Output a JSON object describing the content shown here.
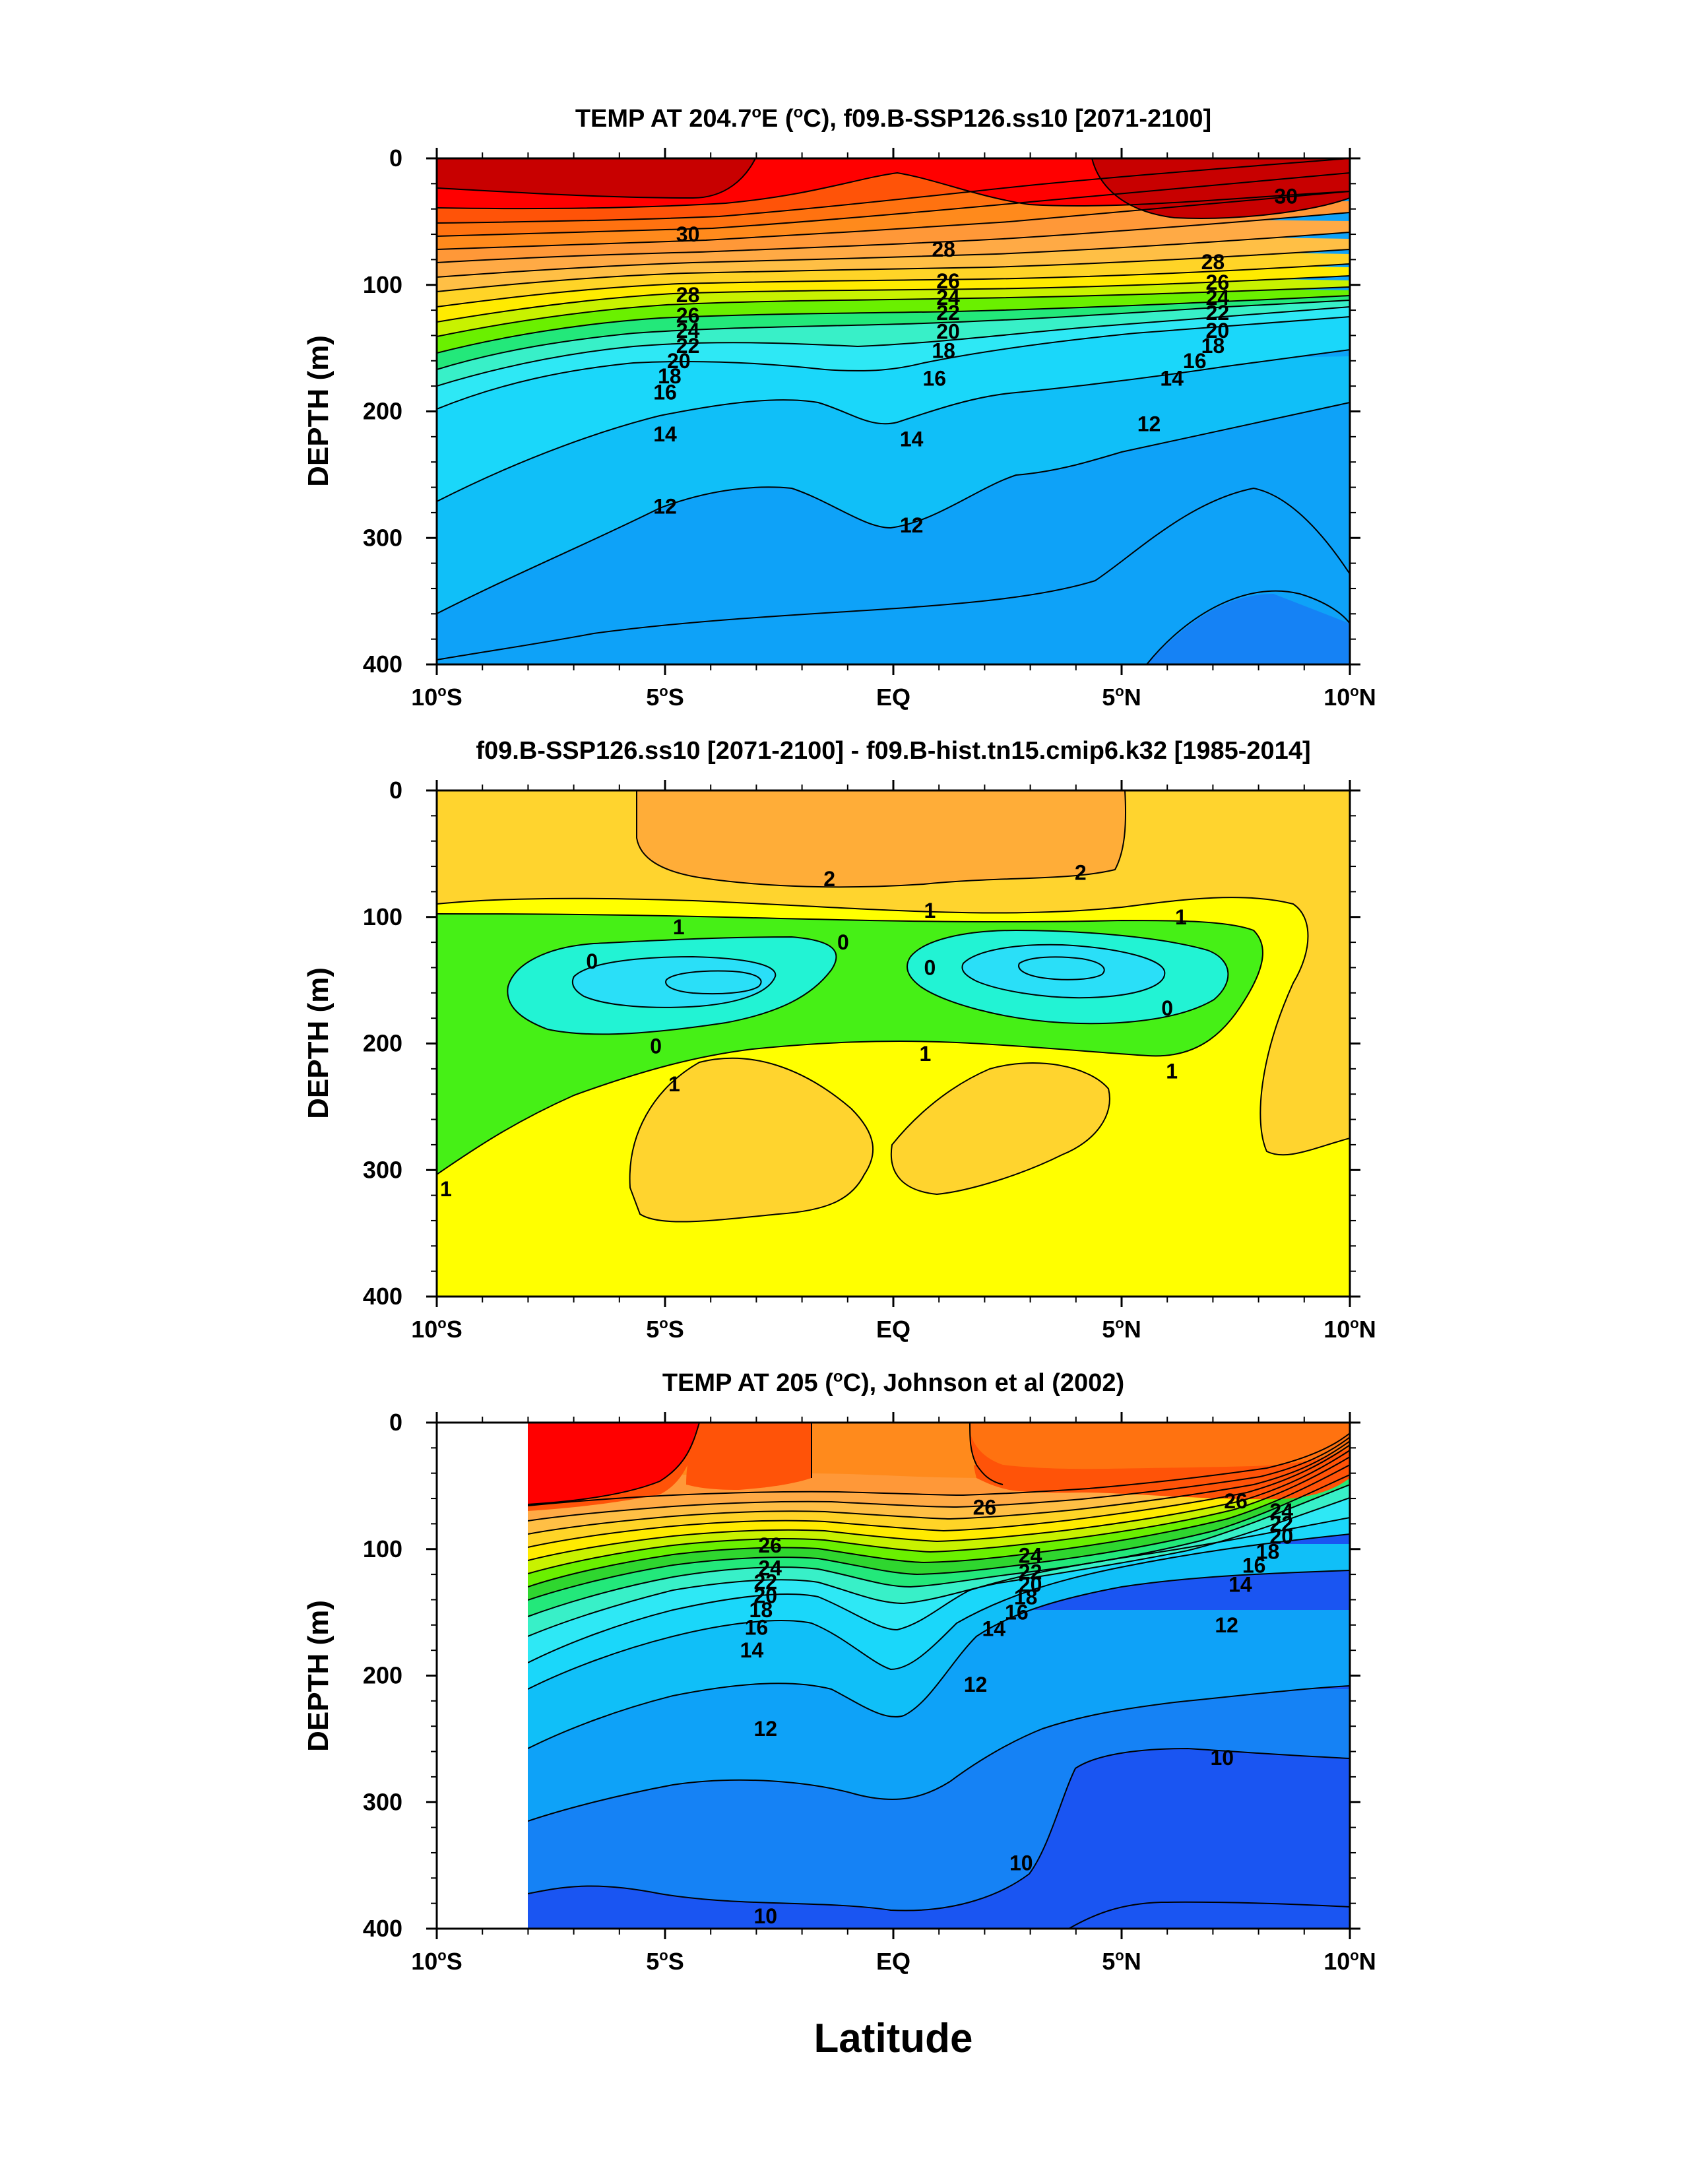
{
  "colors": {
    "temp_scale": [
      "#0a1fe8",
      "#1a55f2",
      "#1582f5",
      "#0ea2f8",
      "#10bff8",
      "#1ad7fa",
      "#2ee8f5",
      "#38f0c8",
      "#23e87a",
      "#2fd62f",
      "#6af000",
      "#c8f200",
      "#ffeb00",
      "#ffd427",
      "#ffbf45",
      "#ffaa45",
      "#ff9838",
      "#ff8a1c",
      "#ff7210",
      "#ff5308",
      "#ff2600",
      "#ff0000",
      "#e00000",
      "#c80000"
    ],
    "diff_scale": {
      "c_low": "#2adff8",
      "c_mid": "#22f3d4",
      "green": "#46f016",
      "yellow": "#ffff00",
      "gold": "#ffd42e",
      "orange": "#ffad38"
    }
  },
  "chart_data": [
    {
      "type": "contour",
      "title": "TEMP AT 204.7°E (°C), f09.B-SSP126.ss10 [2071-2100]",
      "title_parts": {
        "before": "TEMP AT 204.7",
        "deg1": "o",
        "mid": "E (",
        "deg2": "o",
        "after": "C), f09.B-SSP126.ss10 [2071-2100]"
      },
      "ylabel": "DEPTH (m)",
      "xlabel": "",
      "xlim": [
        -10,
        10
      ],
      "ylim": [
        400,
        0
      ],
      "x_ticks": [
        {
          "v": -10,
          "num": "10",
          "hem": "S"
        },
        {
          "v": -5,
          "num": "5",
          "hem": "S"
        },
        {
          "v": 0,
          "num": "EQ",
          "hem": ""
        },
        {
          "v": 5,
          "num": "5",
          "hem": "N"
        },
        {
          "v": 10,
          "num": "10",
          "hem": "N"
        }
      ],
      "y_ticks": [
        "0",
        "100",
        "200",
        "300",
        "400"
      ],
      "y_tick_values": [
        0,
        100,
        200,
        300,
        400
      ],
      "contour_labels": [
        {
          "t": "30",
          "x": -4.5,
          "y": 60
        },
        {
          "t": "30",
          "x": 8.6,
          "y": 30
        },
        {
          "t": "28",
          "x": -4.5,
          "y": 108
        },
        {
          "t": "28",
          "x": 1.1,
          "y": 72
        },
        {
          "t": "28",
          "x": 7.0,
          "y": 82
        },
        {
          "t": "26",
          "x": -4.5,
          "y": 124
        },
        {
          "t": "26",
          "x": 1.2,
          "y": 97
        },
        {
          "t": "26",
          "x": 7.1,
          "y": 98
        },
        {
          "t": "24",
          "x": -4.5,
          "y": 136
        },
        {
          "t": "24",
          "x": 1.2,
          "y": 110
        },
        {
          "t": "24",
          "x": 7.1,
          "y": 110
        },
        {
          "t": "22",
          "x": -4.5,
          "y": 148
        },
        {
          "t": "22",
          "x": 1.2,
          "y": 122
        },
        {
          "t": "22",
          "x": 7.1,
          "y": 122
        },
        {
          "t": "20",
          "x": -4.7,
          "y": 160
        },
        {
          "t": "20",
          "x": 1.2,
          "y": 137
        },
        {
          "t": "20",
          "x": 7.1,
          "y": 136
        },
        {
          "t": "18",
          "x": -4.9,
          "y": 172
        },
        {
          "t": "18",
          "x": 1.1,
          "y": 152
        },
        {
          "t": "18",
          "x": 7.0,
          "y": 148
        },
        {
          "t": "16",
          "x": -5.0,
          "y": 185
        },
        {
          "t": "16",
          "x": 0.9,
          "y": 174
        },
        {
          "t": "16",
          "x": 6.6,
          "y": 160
        },
        {
          "t": "14",
          "x": -5.0,
          "y": 218
        },
        {
          "t": "14",
          "x": 0.4,
          "y": 222
        },
        {
          "t": "14",
          "x": 6.1,
          "y": 174
        },
        {
          "t": "12",
          "x": -5.0,
          "y": 275
        },
        {
          "t": "12",
          "x": 0.4,
          "y": 290
        },
        {
          "t": "12",
          "x": 5.6,
          "y": 210
        }
      ]
    },
    {
      "type": "contour",
      "title": "f09.B-SSP126.ss10 [2071-2100] - f09.B-hist.tn15.cmip6.k32 [1985-2014]",
      "ylabel": "DEPTH (m)",
      "xlabel": "",
      "xlim": [
        -10,
        10
      ],
      "ylim": [
        400,
        0
      ],
      "x_ticks": [
        {
          "v": -10,
          "num": "10",
          "hem": "S"
        },
        {
          "v": -5,
          "num": "5",
          "hem": "S"
        },
        {
          "v": 0,
          "num": "EQ",
          "hem": ""
        },
        {
          "v": 5,
          "num": "5",
          "hem": "N"
        },
        {
          "v": 10,
          "num": "10",
          "hem": "N"
        }
      ],
      "y_ticks": [
        "0",
        "100",
        "200",
        "300",
        "400"
      ],
      "y_tick_values": [
        0,
        100,
        200,
        300,
        400
      ],
      "contour_labels": [
        {
          "t": "2",
          "x": -1.4,
          "y": 70
        },
        {
          "t": "2",
          "x": 4.1,
          "y": 65
        },
        {
          "t": "1",
          "x": -4.7,
          "y": 108
        },
        {
          "t": "1",
          "x": 0.8,
          "y": 95
        },
        {
          "t": "1",
          "x": 6.3,
          "y": 100
        },
        {
          "t": "0",
          "x": -6.6,
          "y": 135
        },
        {
          "t": "0",
          "x": -1.1,
          "y": 120
        },
        {
          "t": "0",
          "x": 0.8,
          "y": 140
        },
        {
          "t": "0",
          "x": 6.0,
          "y": 172
        },
        {
          "t": "0",
          "x": -5.2,
          "y": 202
        },
        {
          "t": "1",
          "x": 0.7,
          "y": 208
        },
        {
          "t": "1",
          "x": 6.1,
          "y": 222
        },
        {
          "t": "1",
          "x": -4.8,
          "y": 232
        },
        {
          "t": "1",
          "x": -9.8,
          "y": 315
        }
      ]
    },
    {
      "type": "contour",
      "title": "TEMP AT 205 (°C), Johnson et al (2002)",
      "title_parts": {
        "before": "TEMP AT 205 (",
        "deg1": "o",
        "after": "C), Johnson et al (2002)"
      },
      "ylabel": "DEPTH (m)",
      "xlabel": "Latitude",
      "xlim": [
        -10,
        10
      ],
      "ylim": [
        400,
        0
      ],
      "data_extent_x": [
        -8,
        10
      ],
      "x_ticks": [
        {
          "v": -10,
          "num": "10",
          "hem": "S"
        },
        {
          "v": -5,
          "num": "5",
          "hem": "S"
        },
        {
          "v": 0,
          "num": "EQ",
          "hem": ""
        },
        {
          "v": 5,
          "num": "5",
          "hem": "N"
        },
        {
          "v": 10,
          "num": "10",
          "hem": "N"
        }
      ],
      "y_ticks": [
        "0",
        "100",
        "200",
        "300",
        "400"
      ],
      "y_tick_values": [
        0,
        100,
        200,
        300,
        400
      ],
      "contour_labels": [
        {
          "t": "26",
          "x": 2.0,
          "y": 67
        },
        {
          "t": "26",
          "x": 7.5,
          "y": 62
        },
        {
          "t": "26",
          "x": -2.7,
          "y": 97
        },
        {
          "t": "24",
          "x": -2.7,
          "y": 115
        },
        {
          "t": "24",
          "x": 3.0,
          "y": 105
        },
        {
          "t": "24",
          "x": 8.5,
          "y": 70
        },
        {
          "t": "22",
          "x": -2.8,
          "y": 126
        },
        {
          "t": "22",
          "x": 3.0,
          "y": 118
        },
        {
          "t": "22",
          "x": 8.5,
          "y": 80
        },
        {
          "t": "20",
          "x": -2.8,
          "y": 137
        },
        {
          "t": "20",
          "x": 3.0,
          "y": 128
        },
        {
          "t": "20",
          "x": 8.5,
          "y": 90
        },
        {
          "t": "18",
          "x": -2.9,
          "y": 148
        },
        {
          "t": "18",
          "x": 2.9,
          "y": 138
        },
        {
          "t": "18",
          "x": 8.2,
          "y": 102
        },
        {
          "t": "16",
          "x": -3.0,
          "y": 162
        },
        {
          "t": "16",
          "x": 2.7,
          "y": 150
        },
        {
          "t": "16",
          "x": 7.9,
          "y": 113
        },
        {
          "t": "14",
          "x": -3.1,
          "y": 180
        },
        {
          "t": "14",
          "x": 2.2,
          "y": 163
        },
        {
          "t": "14",
          "x": 7.6,
          "y": 128
        },
        {
          "t": "12",
          "x": -2.8,
          "y": 242
        },
        {
          "t": "12",
          "x": 1.8,
          "y": 207
        },
        {
          "t": "12",
          "x": 7.3,
          "y": 160
        },
        {
          "t": "10",
          "x": 2.8,
          "y": 348
        },
        {
          "t": "10",
          "x": 7.2,
          "y": 265
        },
        {
          "t": "10",
          "x": -2.8,
          "y": 390
        }
      ]
    }
  ]
}
